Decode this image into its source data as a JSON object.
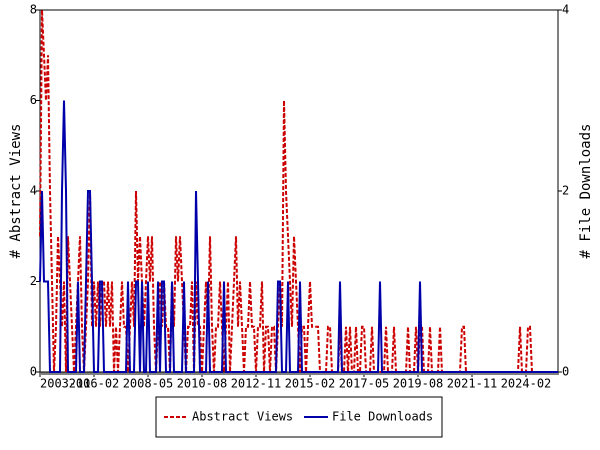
{
  "chart_data": {
    "type": "line",
    "categories": [
      "2003-11",
      null,
      null,
      null,
      null,
      null,
      null,
      null,
      null,
      null,
      null,
      null,
      null,
      null,
      null,
      null,
      null,
      null,
      null,
      null,
      null,
      null,
      null,
      null,
      null,
      null,
      null,
      "2006-02",
      null,
      null,
      null,
      null,
      null,
      null,
      null,
      null,
      null,
      null,
      null,
      null,
      null,
      null,
      null,
      null,
      null,
      null,
      null,
      null,
      null,
      null,
      null,
      null,
      null,
      null,
      "2008-05",
      null,
      null,
      null,
      null,
      null,
      null,
      null,
      null,
      null,
      null,
      null,
      null,
      null,
      null,
      null,
      null,
      null,
      null,
      null,
      null,
      null,
      null,
      null,
      null,
      null,
      null,
      "2010-08",
      null,
      null,
      null,
      null,
      null,
      null,
      null,
      null,
      null,
      null,
      null,
      null,
      null,
      null,
      null,
      null,
      null,
      null,
      null,
      null,
      null,
      null,
      null,
      null,
      null,
      null,
      "2012-11",
      null,
      null,
      null,
      null,
      null,
      null,
      null,
      null,
      null,
      null,
      null,
      null,
      null,
      null,
      null,
      null,
      null,
      null,
      null,
      null,
      null,
      null,
      null,
      null,
      null,
      null,
      "2015-02",
      null,
      null,
      null,
      null,
      null,
      null,
      null,
      null,
      null,
      null,
      null,
      null,
      null,
      null,
      null,
      null,
      null,
      null,
      null,
      null,
      null,
      null,
      null,
      null,
      null,
      null,
      "2017-05",
      null,
      null,
      null,
      null,
      null,
      null,
      null,
      null,
      null,
      null,
      null,
      null,
      null,
      null,
      null,
      null,
      null,
      null,
      null,
      null,
      null,
      null,
      null,
      null,
      null,
      null,
      "2019-08",
      null,
      null,
      null,
      null,
      null,
      null,
      null,
      null,
      null,
      null,
      null,
      null,
      null,
      null,
      null,
      null,
      null,
      null,
      null,
      null,
      null,
      null,
      null,
      null,
      null,
      null,
      "2021-11",
      null,
      null,
      null,
      null,
      null,
      null,
      null,
      null,
      null,
      null,
      null,
      null,
      null,
      null,
      null,
      null,
      null,
      null,
      null,
      null,
      null,
      null,
      null,
      null,
      null,
      null,
      "2024-02",
      null,
      null,
      null,
      null,
      null,
      null,
      null,
      null,
      null,
      null,
      null,
      null,
      null,
      null,
      null,
      null
    ],
    "series": [
      {
        "name": "Abstract Views",
        "color": "#cc0000",
        "dash": true,
        "values": [
          3,
          8,
          7,
          6,
          7,
          4,
          2,
          0,
          1,
          3,
          2,
          1,
          2,
          0,
          3,
          2,
          1,
          0,
          1,
          2,
          3,
          1,
          0,
          1,
          2,
          4,
          1,
          2,
          1,
          2,
          1,
          2,
          2,
          1,
          2,
          1,
          2,
          0,
          1,
          0,
          1,
          2,
          1,
          1,
          0,
          1,
          2,
          1,
          4,
          2,
          3,
          2,
          1,
          2,
          3,
          2,
          3,
          1,
          0,
          1,
          2,
          1,
          2,
          1,
          1,
          0,
          2,
          1,
          3,
          2,
          3,
          2,
          1,
          0,
          1,
          1,
          2,
          0,
          2,
          1,
          1,
          0,
          1,
          2,
          1,
          3,
          1,
          0,
          1,
          1,
          2,
          1,
          0,
          1,
          2,
          0,
          1,
          2,
          3,
          1,
          2,
          1,
          0,
          1,
          1,
          2,
          1,
          1,
          0,
          1,
          1,
          2,
          0,
          1,
          1,
          0,
          1,
          1,
          0,
          1,
          2,
          1,
          6,
          4,
          3,
          2,
          1,
          3,
          2,
          1,
          0,
          1,
          1,
          0,
          1,
          2,
          1,
          1,
          1,
          1,
          0,
          0,
          0,
          0,
          1,
          1,
          0,
          0,
          0,
          0,
          1,
          0,
          0,
          1,
          0,
          1,
          0,
          0,
          1,
          0,
          0,
          1,
          1,
          0,
          0,
          0,
          1,
          0,
          0,
          0,
          0,
          0,
          0,
          1,
          0,
          0,
          0,
          1,
          0,
          0,
          0,
          0,
          0,
          0,
          1,
          0,
          0,
          0,
          1,
          0,
          1,
          1,
          0,
          0,
          0,
          1,
          0,
          0,
          0,
          0,
          1,
          0,
          0,
          0,
          0,
          0,
          0,
          0,
          0,
          0,
          0,
          1,
          1,
          0,
          0,
          0,
          0,
          0,
          0,
          0,
          0,
          0,
          0,
          0,
          0,
          0,
          0,
          0,
          0,
          0,
          0,
          0,
          0,
          0,
          0,
          0,
          0,
          0,
          0,
          0,
          1,
          0,
          0,
          0,
          1,
          1,
          0,
          0,
          0,
          0,
          0,
          0,
          0,
          0,
          0,
          0,
          0,
          0,
          0,
          0
        ]
      },
      {
        "name": "File Downloads",
        "color": "#0000aa",
        "axis": "y2",
        "values": [
          1,
          2,
          1,
          1,
          1,
          0,
          0,
          0,
          0,
          0,
          0,
          2,
          3,
          2,
          0,
          0,
          0,
          0,
          0,
          1,
          0,
          0,
          0,
          1,
          2,
          2,
          1,
          0,
          0,
          0,
          1,
          1,
          0,
          0,
          0,
          0,
          0,
          0,
          0,
          0,
          0,
          0,
          0,
          0,
          1,
          0,
          0,
          0,
          1,
          1,
          0,
          1,
          0,
          0,
          1,
          0,
          0,
          0,
          0,
          1,
          0,
          1,
          1,
          0,
          0,
          0,
          1,
          0,
          0,
          0,
          0,
          0,
          1,
          0,
          0,
          0,
          0,
          0,
          2,
          1,
          0,
          0,
          0,
          0,
          1,
          0,
          0,
          0,
          0,
          0,
          0,
          0,
          1,
          0,
          0,
          0,
          0,
          0,
          0,
          0,
          0,
          0,
          0,
          0,
          0,
          0,
          0,
          0,
          0,
          0,
          0,
          0,
          0,
          0,
          0,
          0,
          0,
          0,
          0,
          1,
          1,
          0,
          0,
          0,
          1,
          0,
          0,
          0,
          0,
          0,
          1,
          0,
          0,
          0,
          0,
          0,
          0,
          0,
          0,
          0,
          0,
          0,
          0,
          0,
          0,
          0,
          0,
          0,
          0,
          0,
          1,
          0,
          0,
          0,
          0,
          0,
          0,
          0,
          0,
          0,
          0,
          0,
          0,
          0,
          0,
          0,
          0,
          0,
          0,
          0,
          1,
          0,
          0,
          0,
          0,
          0,
          0,
          0,
          0,
          0,
          0,
          0,
          0,
          0,
          0,
          0,
          0,
          0,
          0,
          0,
          1,
          0,
          0,
          0,
          0,
          0,
          0,
          0,
          0,
          0,
          0,
          0,
          0,
          0,
          0,
          0,
          0,
          0,
          0,
          0,
          0,
          0,
          0,
          0,
          0,
          0,
          0,
          0,
          0,
          0,
          0,
          0,
          0,
          0,
          0,
          0,
          0,
          0,
          0,
          0,
          0,
          0,
          0,
          0,
          0,
          0,
          0,
          0,
          0,
          0,
          0,
          0,
          0,
          0,
          0,
          0,
          0,
          0,
          0,
          0,
          0,
          0,
          0,
          0,
          0,
          0,
          0,
          0,
          0,
          0
        ]
      }
    ],
    "y_label": "# Abstract Views",
    "y2_label": "# File Downloads",
    "ylim": [
      0,
      8
    ],
    "yticks": [
      0,
      2,
      4,
      6,
      8
    ],
    "y2lim": [
      0,
      4
    ],
    "y2ticks": [
      0,
      2,
      4
    ],
    "legend": "bottom"
  }
}
